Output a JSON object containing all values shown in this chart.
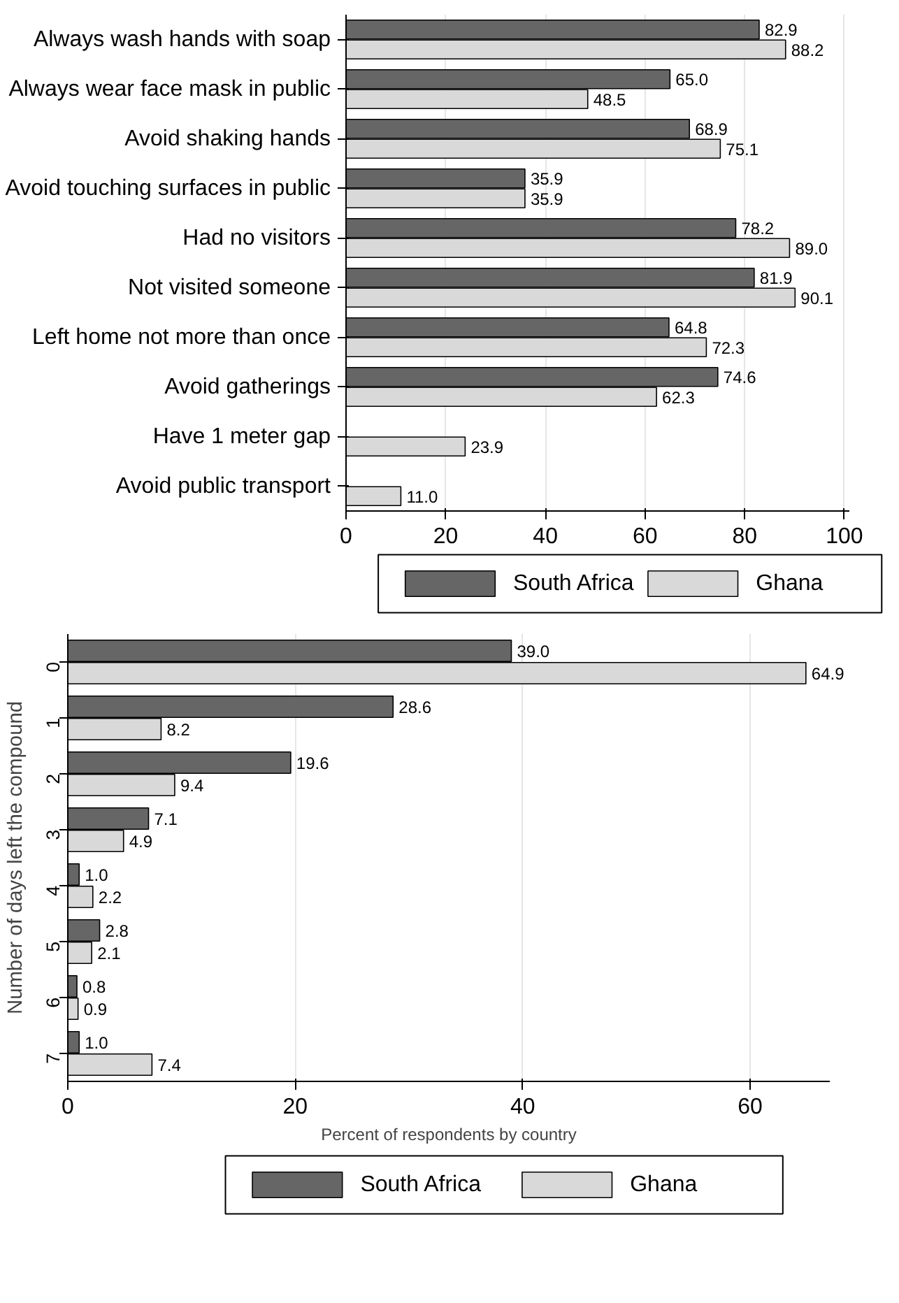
{
  "chart_data": [
    {
      "type": "bar",
      "orientation": "horizontal",
      "categories": [
        "Always wash hands with soap",
        "Always wear face mask in public",
        "Avoid shaking hands",
        "Avoid touching surfaces in public",
        "Had no visitors",
        "Not visited someone",
        "Left home not more than once",
        "Avoid gatherings",
        "Have 1 meter gap",
        "Avoid public transport"
      ],
      "series": [
        {
          "name": "South Africa",
          "color": "#666666",
          "values": [
            82.9,
            65.0,
            68.9,
            35.9,
            78.2,
            81.9,
            64.8,
            74.6,
            null,
            null
          ],
          "value_labels": [
            "82.9",
            "65.0",
            "68.9",
            "35.9",
            "78.2",
            "81.9",
            "64.8",
            "74.6",
            null,
            null
          ]
        },
        {
          "name": "Ghana",
          "color": "#d9d9d9",
          "values": [
            88.2,
            48.5,
            75.1,
            35.9,
            89.0,
            90.1,
            72.3,
            62.3,
            23.9,
            11.0
          ],
          "value_labels": [
            "88.2",
            "48.5",
            "75.1",
            "35.9",
            "89.0",
            "90.1",
            "72.3",
            "62.3",
            "23.9",
            "11.0"
          ]
        }
      ],
      "xlim": [
        0,
        101
      ],
      "xticks": [
        0,
        20,
        40,
        60,
        80,
        100
      ],
      "grid": "x",
      "legend": "bottom"
    },
    {
      "type": "bar",
      "orientation": "horizontal",
      "categories": [
        "0",
        "1",
        "2",
        "3",
        "4",
        "5",
        "6",
        "7"
      ],
      "series": [
        {
          "name": "South Africa",
          "color": "#666666",
          "values": [
            39.0,
            28.6,
            19.6,
            7.1,
            1.0,
            2.8,
            0.8,
            1.0
          ],
          "value_labels": [
            "39.0",
            "28.6",
            "19.6",
            "7.1",
            "1.0",
            "2.8",
            "0.8",
            "1.0"
          ]
        },
        {
          "name": "Ghana",
          "color": "#d9d9d9",
          "values": [
            64.9,
            8.2,
            9.4,
            4.9,
            2.2,
            2.1,
            0.9,
            7.4
          ],
          "value_labels": [
            "64.9",
            "8.2",
            "9.4",
            "4.9",
            "2.2",
            "2.1",
            "0.9",
            "7.4"
          ]
        }
      ],
      "xlim": [
        0,
        67
      ],
      "xticks": [
        0,
        20,
        40,
        60
      ],
      "xlabel": "Percent of respondents by country",
      "ylabel": "Number of days left the compound",
      "grid": "x",
      "legend": "bottom"
    }
  ]
}
